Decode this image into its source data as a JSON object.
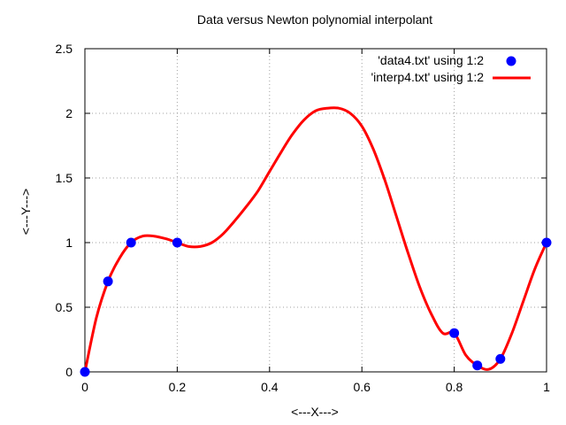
{
  "chart_data": {
    "type": "line",
    "title": "Data versus Newton polynomial interpolant",
    "xlabel": "<---X--->",
    "ylabel": "<---Y--->",
    "xlim": [
      0,
      1
    ],
    "ylim": [
      0,
      2.5
    ],
    "x_ticks": [
      0,
      0.2,
      0.4,
      0.6,
      0.8,
      1
    ],
    "x_tick_labels": [
      "0",
      "0.2",
      "0.4",
      "0.6",
      "0.8",
      "1"
    ],
    "y_ticks": [
      0,
      0.5,
      1,
      1.5,
      2,
      2.5
    ],
    "y_tick_labels": [
      "0",
      "0.5",
      "1",
      "1.5",
      "2",
      "2.5"
    ],
    "grid": true,
    "legend_position": "top-right",
    "series": [
      {
        "name": "'data4.txt' using 1:2",
        "kind": "points",
        "color": "#0000ff",
        "x": [
          0,
          0.05,
          0.1,
          0.2,
          0.8,
          0.85,
          0.9,
          1.0
        ],
        "y": [
          0,
          0.7,
          1.0,
          1.0,
          0.3,
          0.05,
          0.1,
          1.0
        ]
      },
      {
        "name": "'interp4.txt' using 1:2",
        "kind": "line",
        "color": "#ff0000",
        "x": [
          0,
          0.025,
          0.05,
          0.075,
          0.1,
          0.125,
          0.15,
          0.175,
          0.2,
          0.225,
          0.25,
          0.275,
          0.3,
          0.325,
          0.35,
          0.375,
          0.4,
          0.425,
          0.45,
          0.475,
          0.5,
          0.525,
          0.55,
          0.575,
          0.6,
          0.625,
          0.65,
          0.675,
          0.7,
          0.725,
          0.75,
          0.775,
          0.8,
          0.825,
          0.85,
          0.875,
          0.9,
          0.925,
          0.95,
          0.975,
          1.0
        ],
        "y": [
          0,
          0.42,
          0.7,
          0.88,
          1.0,
          1.05,
          1.05,
          1.03,
          1.0,
          0.97,
          0.97,
          1.0,
          1.07,
          1.17,
          1.28,
          1.4,
          1.55,
          1.7,
          1.84,
          1.95,
          2.02,
          2.04,
          2.04,
          2.0,
          1.9,
          1.72,
          1.48,
          1.2,
          0.92,
          0.66,
          0.45,
          0.3,
          0.3,
          0.13,
          0.05,
          0.02,
          0.1,
          0.3,
          0.55,
          0.8,
          1.0
        ]
      }
    ]
  }
}
